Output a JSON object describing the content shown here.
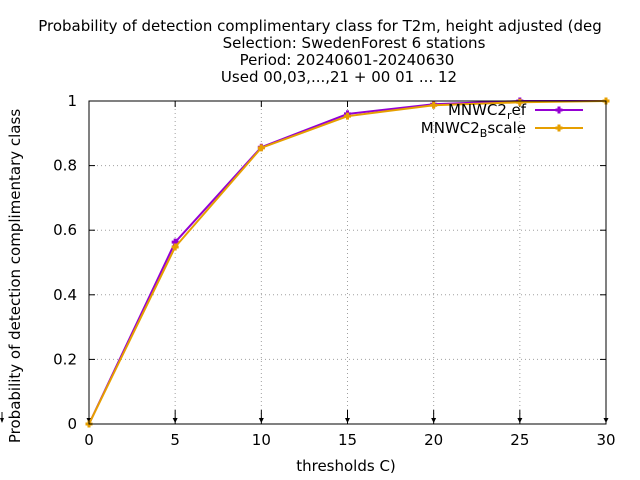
{
  "chart_data": {
    "type": "line",
    "title_lines": [
      "Probability of detection complimentary class  for T2m, height adjusted (deg",
      "Selection: SwedenForest      6 stations",
      "Period: 20240601-20240630",
      "Used 00,03,...,21 + 00 01 ... 12"
    ],
    "xlabel": "thresholds C)",
    "ylabel": "Probability of detection complimentary class",
    "xlim": [
      0,
      30
    ],
    "ylim": [
      0,
      1
    ],
    "xticks": [
      0,
      5,
      10,
      15,
      20,
      25,
      30
    ],
    "yticks": [
      0,
      0.2,
      0.4,
      0.6,
      0.8,
      1
    ],
    "ytick_labels": [
      "0",
      "0.2",
      "0.4",
      "0.6",
      "0.8",
      "1"
    ],
    "grid": true,
    "legend_position": "top-right",
    "x": [
      0,
      5,
      10,
      15,
      20,
      25,
      30
    ],
    "series": [
      {
        "name": "MNWC2_ref",
        "legend_main": "MNWC2",
        "legend_sub": "r",
        "legend_rest": "ef",
        "color": "#9400d3",
        "values": [
          0.0,
          0.563,
          0.857,
          0.96,
          0.99,
          1.0,
          1.0
        ]
      },
      {
        "name": "MNWC2_Bscale",
        "legend_main": "MNWC2",
        "legend_sub": "B",
        "legend_rest": "scale",
        "color": "#e69f00",
        "values": [
          0.0,
          0.548,
          0.855,
          0.953,
          0.987,
          0.996,
          1.0
        ]
      }
    ]
  }
}
